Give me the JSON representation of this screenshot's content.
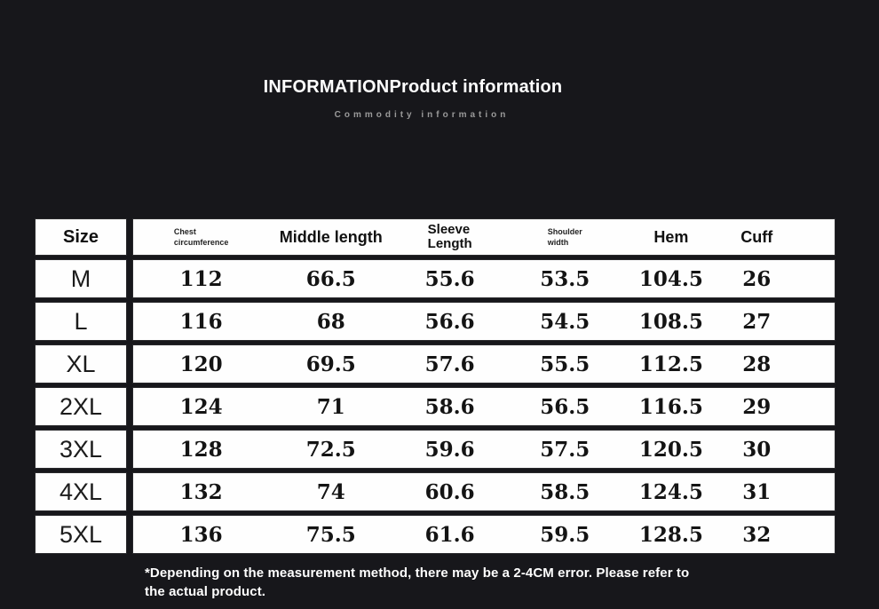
{
  "header": {
    "title": "INFORMATIONProduct information",
    "subtitle": "Commodity information"
  },
  "colors": {
    "background": "#17171b",
    "cell": "#ffffff",
    "ink": "#141414",
    "subtitle_gray": "#9a9a9a"
  },
  "table": {
    "header": {
      "size": "Size",
      "chest_line1": "Chest",
      "chest_line2": "circumference",
      "middle": "Middle length",
      "sleeve_line1": "Sleeve",
      "sleeve_line2": "Length",
      "shoulder_line1": "Shoulder",
      "shoulder_line2": "width",
      "hem": "Hem",
      "cuff": "Cuff"
    },
    "rows": [
      {
        "size": "M",
        "chest": "112",
        "middle": "66.5",
        "sleeve": "55.6",
        "shoulder": "53.5",
        "hem": "104.5",
        "cuff": "26"
      },
      {
        "size": "L",
        "chest": "116",
        "middle": "68",
        "sleeve": "56.6",
        "shoulder": "54.5",
        "hem": "108.5",
        "cuff": "27"
      },
      {
        "size": "XL",
        "chest": "120",
        "middle": "69.5",
        "sleeve": "57.6",
        "shoulder": "55.5",
        "hem": "112.5",
        "cuff": "28"
      },
      {
        "size": "2XL",
        "chest": "124",
        "middle": "71",
        "sleeve": "58.6",
        "shoulder": "56.5",
        "hem": "116.5",
        "cuff": "29"
      },
      {
        "size": "3XL",
        "chest": "128",
        "middle": "72.5",
        "sleeve": "59.6",
        "shoulder": "57.5",
        "hem": "120.5",
        "cuff": "30"
      },
      {
        "size": "4XL",
        "chest": "132",
        "middle": "74",
        "sleeve": "60.6",
        "shoulder": "58.5",
        "hem": "124.5",
        "cuff": "31"
      },
      {
        "size": "5XL",
        "chest": "136",
        "middle": "75.5",
        "sleeve": "61.6",
        "shoulder": "59.5",
        "hem": "128.5",
        "cuff": "32"
      }
    ]
  },
  "footer": {
    "note_line1": "*Depending on the measurement method, there may be a 2-4CM error. Please refer to",
    "note_line2": "the actual product."
  }
}
